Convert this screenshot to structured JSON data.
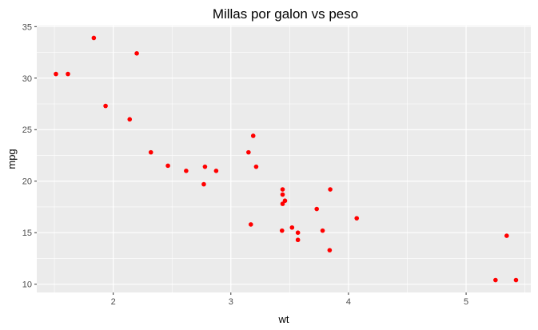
{
  "chart_data": {
    "type": "scatter",
    "title": "Millas por galon vs peso",
    "xlabel": "wt",
    "ylabel": "mpg",
    "xlim": [
      1.35,
      5.55
    ],
    "ylim": [
      9.2,
      35.1
    ],
    "xticks": [
      2,
      3,
      4,
      5
    ],
    "yticks": [
      10,
      15,
      20,
      25,
      30,
      35
    ],
    "grid": true,
    "point_color": "#ff0000",
    "panel_background": "#ebebeb",
    "x": [
      2.62,
      2.875,
      2.32,
      3.215,
      3.44,
      3.46,
      3.57,
      3.19,
      3.15,
      3.44,
      3.44,
      4.07,
      3.73,
      3.78,
      5.25,
      5.424,
      5.345,
      2.2,
      1.615,
      1.835,
      2.465,
      3.52,
      3.435,
      3.84,
      3.845,
      1.935,
      2.14,
      1.513,
      3.17,
      2.77,
      3.57,
      2.78
    ],
    "y": [
      21.0,
      21.0,
      22.8,
      21.4,
      18.7,
      18.1,
      14.3,
      24.4,
      22.8,
      19.2,
      17.8,
      16.4,
      17.3,
      15.2,
      10.4,
      10.4,
      14.7,
      32.4,
      30.4,
      33.9,
      21.5,
      15.5,
      15.2,
      13.3,
      19.2,
      27.3,
      26.0,
      30.4,
      15.8,
      19.7,
      15.0,
      21.4
    ]
  }
}
